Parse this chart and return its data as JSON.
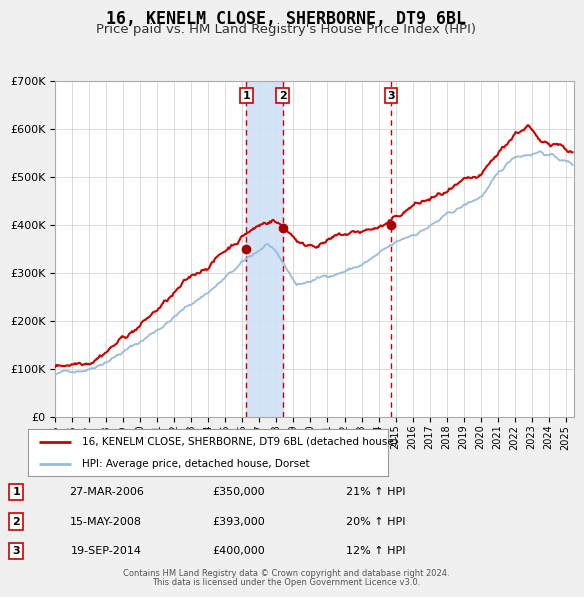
{
  "title": "16, KENELM CLOSE, SHERBORNE, DT9 6BL",
  "subtitle": "Price paid vs. HM Land Registry's House Price Index (HPI)",
  "ylim": [
    0,
    700000
  ],
  "yticks": [
    0,
    100000,
    200000,
    300000,
    400000,
    500000,
    600000,
    700000
  ],
  "ytick_labels": [
    "£0",
    "£100K",
    "£200K",
    "£300K",
    "£400K",
    "£500K",
    "£600K",
    "£700K"
  ],
  "xlim_start": 1995.0,
  "xlim_end": 2025.5,
  "xtick_years": [
    1995,
    1996,
    1997,
    1998,
    1999,
    2000,
    2001,
    2002,
    2003,
    2004,
    2005,
    2006,
    2007,
    2008,
    2009,
    2010,
    2011,
    2012,
    2013,
    2014,
    2015,
    2016,
    2017,
    2018,
    2019,
    2020,
    2021,
    2022,
    2023,
    2024,
    2025
  ],
  "background_color": "#f0f0f0",
  "plot_bg_color": "#ffffff",
  "grid_color": "#cccccc",
  "red_line_color": "#cc0000",
  "blue_line_color": "#99bbdd",
  "shade_color": "#cce0f5",
  "vline_color": "#cc0000",
  "marker_color": "#aa0000",
  "legend_box_color": "#cc0000",
  "title_fontsize": 12,
  "subtitle_fontsize": 9.5,
  "transactions": [
    {
      "num": 1,
      "date_year": 2006.23,
      "price": 350000,
      "hpi_pct": "21%",
      "date_str": "27-MAR-2006",
      "price_str": "£350,000"
    },
    {
      "num": 2,
      "date_year": 2008.37,
      "price": 393000,
      "hpi_pct": "20%",
      "date_str": "15-MAY-2008",
      "price_str": "£393,000"
    },
    {
      "num": 3,
      "date_year": 2014.72,
      "price": 400000,
      "hpi_pct": "12%",
      "date_str": "19-SEP-2014",
      "price_str": "£400,000"
    }
  ],
  "legend_entry1": "16, KENELM CLOSE, SHERBORNE, DT9 6BL (detached house)",
  "legend_entry2": "HPI: Average price, detached house, Dorset",
  "footnote1": "Contains HM Land Registry data © Crown copyright and database right 2024.",
  "footnote2": "This data is licensed under the Open Government Licence v3.0."
}
